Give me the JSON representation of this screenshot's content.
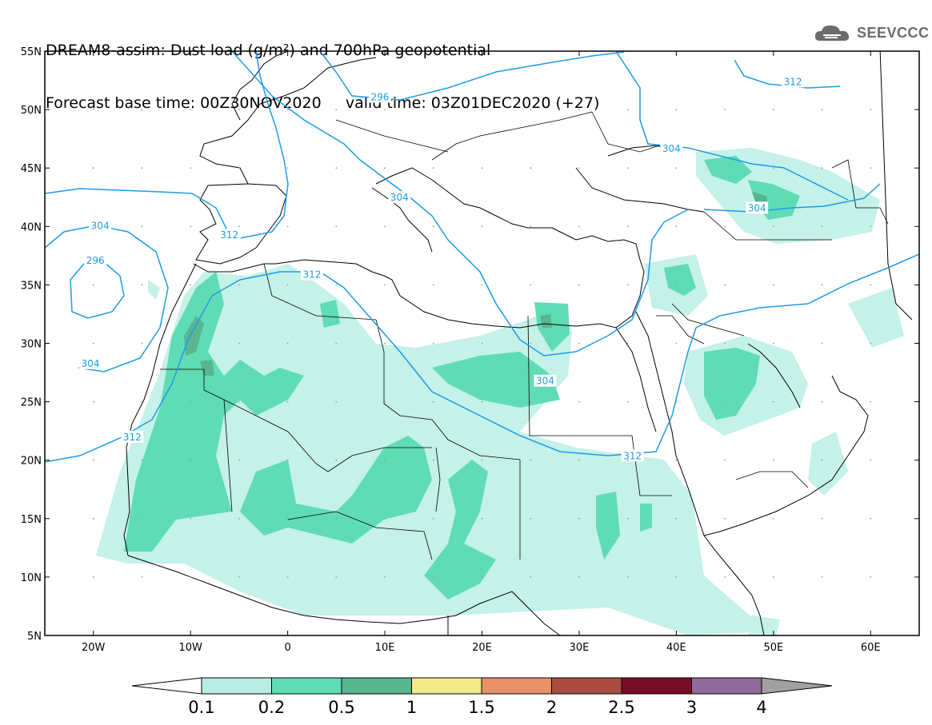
{
  "header": {
    "title_line1": "DREAM8-assim: Dust load (g/m²) and 700hPa geopotential",
    "title_line2": "Forecast base time: 00Z30NOV2020     valid time: 03Z01DEC2020 (+27)"
  },
  "logo": {
    "text": "SEEVCCC",
    "icon": "cloud-icon",
    "color": "#6b6b6b"
  },
  "map": {
    "lon_ticks": [
      "20W",
      "10W",
      "0",
      "10E",
      "20E",
      "30E",
      "40E",
      "50E",
      "60E"
    ],
    "lat_ticks": [
      "55N",
      "50N",
      "45N",
      "40N",
      "35N",
      "30N",
      "25N",
      "20N",
      "15N",
      "10N",
      "5N"
    ],
    "lon_range": [
      -25,
      65
    ],
    "lat_range": [
      5,
      55
    ],
    "contour_color": "#1e9be8",
    "contour_labels": [
      {
        "text": "296",
        "lon": 9.5,
        "lat": 51
      },
      {
        "text": "304",
        "lon": 11.5,
        "lat": 42.4
      },
      {
        "text": "312",
        "lon": -6,
        "lat": 39.2
      },
      {
        "text": "304",
        "lon": -19.3,
        "lat": 40
      },
      {
        "text": "296",
        "lon": -19.8,
        "lat": 37
      },
      {
        "text": "312",
        "lon": 2.5,
        "lat": 35.8
      },
      {
        "text": "304",
        "lon": -20.3,
        "lat": 28.2
      },
      {
        "text": "312",
        "lon": -16,
        "lat": 21.9
      },
      {
        "text": "304",
        "lon": 26.5,
        "lat": 26.7
      },
      {
        "text": "312",
        "lon": 35.5,
        "lat": 20.3
      },
      {
        "text": "304",
        "lon": 39.5,
        "lat": 46.6
      },
      {
        "text": "304",
        "lon": 48.3,
        "lat": 41.5
      },
      {
        "text": "312",
        "lon": 52,
        "lat": 52.3
      }
    ]
  },
  "colorbar": {
    "colors": [
      "#b7ede3",
      "#5fdcb4",
      "#59b590",
      "#f4e98a",
      "#e89068",
      "#aa4b40",
      "#780d28",
      "#8f6a9b"
    ],
    "ticks": [
      "0.1",
      "0.2",
      "0.5",
      "1",
      "1.5",
      "2",
      "2.5",
      "3",
      "4"
    ],
    "over_color": "#a0a0a0"
  },
  "legend_colors": {
    "light": "#c4f1e8",
    "medium": "#5fdcb4",
    "dark": "#59b590"
  }
}
